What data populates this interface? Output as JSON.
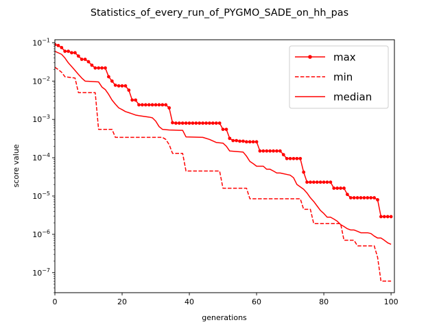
{
  "chart_data": {
    "type": "line",
    "title": "Statistics_of_every_run_of_PYGMO_SADE_on_hh_pas",
    "xlabel": "generations",
    "ylabel": "score value",
    "xlim": [
      0,
      101
    ],
    "ylim": [
      3e-08,
      0.12
    ],
    "yscale": "log",
    "x_ticks": [
      0,
      20,
      40,
      60,
      80,
      100
    ],
    "y_ticks": [
      {
        "value": 1e-07,
        "base": "10",
        "exp": "−7"
      },
      {
        "value": 1e-06,
        "base": "10",
        "exp": "−6"
      },
      {
        "value": 1e-05,
        "base": "10",
        "exp": "−5"
      },
      {
        "value": 0.0001,
        "base": "10",
        "exp": "−4"
      },
      {
        "value": 0.001,
        "base": "10",
        "exp": "−3"
      },
      {
        "value": 0.01,
        "base": "10",
        "exp": "−2"
      },
      {
        "value": 0.1,
        "base": "10",
        "exp": "−1"
      }
    ],
    "grid": false,
    "legend_position": "top-right",
    "color": "#ff0000",
    "series": [
      {
        "name": "max",
        "style": "solid-marker",
        "points": [
          [
            0,
            0.09
          ],
          [
            1,
            0.085
          ],
          [
            2,
            0.075
          ],
          [
            3,
            0.06
          ],
          [
            4,
            0.06
          ],
          [
            5,
            0.055
          ],
          [
            6,
            0.055
          ],
          [
            7,
            0.045
          ],
          [
            8,
            0.037
          ],
          [
            9,
            0.037
          ],
          [
            10,
            0.032
          ],
          [
            11,
            0.026
          ],
          [
            12,
            0.022
          ],
          [
            13,
            0.022
          ],
          [
            14,
            0.022
          ],
          [
            15,
            0.022
          ],
          [
            16,
            0.013
          ],
          [
            17,
            0.01
          ],
          [
            18,
            0.0078
          ],
          [
            19,
            0.0075
          ],
          [
            20,
            0.0075
          ],
          [
            21,
            0.0075
          ],
          [
            22,
            0.0058
          ],
          [
            23,
            0.0032
          ],
          [
            24,
            0.0032
          ],
          [
            25,
            0.0024
          ],
          [
            26,
            0.0024
          ],
          [
            27,
            0.0024
          ],
          [
            28,
            0.0024
          ],
          [
            29,
            0.0024
          ],
          [
            30,
            0.0024
          ],
          [
            31,
            0.0024
          ],
          [
            32,
            0.0024
          ],
          [
            33,
            0.0024
          ],
          [
            34,
            0.002
          ],
          [
            35,
            0.00082
          ],
          [
            36,
            0.0008
          ],
          [
            37,
            0.0008
          ],
          [
            38,
            0.0008
          ],
          [
            39,
            0.0008
          ],
          [
            40,
            0.0008
          ],
          [
            41,
            0.0008
          ],
          [
            42,
            0.0008
          ],
          [
            43,
            0.0008
          ],
          [
            44,
            0.0008
          ],
          [
            45,
            0.0008
          ],
          [
            46,
            0.0008
          ],
          [
            47,
            0.0008
          ],
          [
            48,
            0.0008
          ],
          [
            49,
            0.0008
          ],
          [
            50,
            0.00055
          ],
          [
            51,
            0.00055
          ],
          [
            52,
            0.00032
          ],
          [
            53,
            0.00028
          ],
          [
            54,
            0.00028
          ],
          [
            55,
            0.00027
          ],
          [
            56,
            0.00027
          ],
          [
            57,
            0.00026
          ],
          [
            58,
            0.00026
          ],
          [
            59,
            0.00026
          ],
          [
            60,
            0.00026
          ],
          [
            61,
            0.00015
          ],
          [
            62,
            0.00015
          ],
          [
            63,
            0.00015
          ],
          [
            64,
            0.00015
          ],
          [
            65,
            0.00015
          ],
          [
            66,
            0.00015
          ],
          [
            67,
            0.00015
          ],
          [
            68,
            0.00012
          ],
          [
            69,
            9.5e-05
          ],
          [
            70,
            9.5e-05
          ],
          [
            71,
            9.5e-05
          ],
          [
            72,
            9.5e-05
          ],
          [
            73,
            9.5e-05
          ],
          [
            74,
            4.2e-05
          ],
          [
            75,
            2.3e-05
          ],
          [
            76,
            2.3e-05
          ],
          [
            77,
            2.3e-05
          ],
          [
            78,
            2.3e-05
          ],
          [
            79,
            2.3e-05
          ],
          [
            80,
            2.3e-05
          ],
          [
            81,
            2.3e-05
          ],
          [
            82,
            2.3e-05
          ],
          [
            83,
            1.6e-05
          ],
          [
            84,
            1.6e-05
          ],
          [
            85,
            1.6e-05
          ],
          [
            86,
            1.6e-05
          ],
          [
            87,
            1.1e-05
          ],
          [
            88,
            9e-06
          ],
          [
            89,
            9e-06
          ],
          [
            90,
            9e-06
          ],
          [
            91,
            9e-06
          ],
          [
            92,
            9e-06
          ],
          [
            93,
            9e-06
          ],
          [
            94,
            9e-06
          ],
          [
            95,
            9e-06
          ],
          [
            96,
            8e-06
          ],
          [
            97,
            2.9e-06
          ],
          [
            98,
            2.9e-06
          ],
          [
            99,
            2.9e-06
          ],
          [
            100,
            2.9e-06
          ]
        ]
      },
      {
        "name": "min",
        "style": "dashed",
        "points": [
          [
            0,
            0.023
          ],
          [
            1,
            0.02
          ],
          [
            2,
            0.017
          ],
          [
            3,
            0.013
          ],
          [
            6,
            0.012
          ],
          [
            7,
            0.005
          ],
          [
            12,
            0.005
          ],
          [
            13,
            0.00055
          ],
          [
            17,
            0.00055
          ],
          [
            18,
            0.00034
          ],
          [
            32,
            0.00034
          ],
          [
            33,
            0.0003
          ],
          [
            34,
            0.00022
          ],
          [
            35,
            0.00013
          ],
          [
            38,
            0.00013
          ],
          [
            39,
            4.5e-05
          ],
          [
            49,
            4.5e-05
          ],
          [
            50,
            1.6e-05
          ],
          [
            57,
            1.6e-05
          ],
          [
            58,
            8.5e-06
          ],
          [
            73,
            8.5e-06
          ],
          [
            74,
            4.5e-06
          ],
          [
            76,
            4.5e-06
          ],
          [
            77,
            1.9e-06
          ],
          [
            85,
            1.9e-06
          ],
          [
            86,
            7e-07
          ],
          [
            89,
            7e-07
          ],
          [
            90,
            5e-07
          ],
          [
            95,
            5e-07
          ],
          [
            96,
            2.5e-07
          ],
          [
            97,
            6e-08
          ],
          [
            100,
            6e-08
          ]
        ]
      },
      {
        "name": "median",
        "style": "solid",
        "points": [
          [
            0,
            0.06
          ],
          [
            2,
            0.05
          ],
          [
            3,
            0.04
          ],
          [
            4,
            0.03
          ],
          [
            5,
            0.024
          ],
          [
            6,
            0.019
          ],
          [
            7,
            0.015
          ],
          [
            8,
            0.012
          ],
          [
            9,
            0.01
          ],
          [
            13,
            0.0095
          ],
          [
            14,
            0.007
          ],
          [
            15,
            0.006
          ],
          [
            16,
            0.0045
          ],
          [
            17,
            0.0032
          ],
          [
            18,
            0.0025
          ],
          [
            19,
            0.002
          ],
          [
            20,
            0.0018
          ],
          [
            21,
            0.0016
          ],
          [
            22,
            0.0015
          ],
          [
            23,
            0.0014
          ],
          [
            24,
            0.0013
          ],
          [
            25,
            0.00125
          ],
          [
            28,
            0.00115
          ],
          [
            29,
            0.0011
          ],
          [
            30,
            0.0009
          ],
          [
            31,
            0.00065
          ],
          [
            32,
            0.00055
          ],
          [
            34,
            0.00053
          ],
          [
            37,
            0.00052
          ],
          [
            38,
            0.00052
          ],
          [
            39,
            0.00035
          ],
          [
            44,
            0.00034
          ],
          [
            46,
            0.0003
          ],
          [
            48,
            0.00025
          ],
          [
            50,
            0.00024
          ],
          [
            51,
            0.0002
          ],
          [
            52,
            0.00015
          ],
          [
            56,
            0.00014
          ],
          [
            57,
            0.00011
          ],
          [
            58,
            8e-05
          ],
          [
            59,
            7e-05
          ],
          [
            60,
            6e-05
          ],
          [
            61,
            6e-05
          ],
          [
            62,
            6e-05
          ],
          [
            63,
            5e-05
          ],
          [
            64,
            5e-05
          ],
          [
            65,
            4.5e-05
          ],
          [
            66,
            4e-05
          ],
          [
            67,
            4e-05
          ],
          [
            70,
            3.5e-05
          ],
          [
            71,
            3e-05
          ],
          [
            72,
            2e-05
          ],
          [
            74,
            1.5e-05
          ],
          [
            75,
            1.2e-05
          ],
          [
            76,
            9e-06
          ],
          [
            77,
            7.2e-06
          ],
          [
            78,
            5.5e-06
          ],
          [
            79,
            4.2e-06
          ],
          [
            80,
            3.5e-06
          ],
          [
            81,
            2.8e-06
          ],
          [
            82,
            2.8e-06
          ],
          [
            83,
            2.5e-06
          ],
          [
            84,
            2.2e-06
          ],
          [
            85,
            1.8e-06
          ],
          [
            86,
            1.6e-06
          ],
          [
            87,
            1.4e-06
          ],
          [
            88,
            1.3e-06
          ],
          [
            89,
            1.3e-06
          ],
          [
            90,
            1.2e-06
          ],
          [
            91,
            1.1e-06
          ],
          [
            93,
            1.1e-06
          ],
          [
            94,
            1.05e-06
          ],
          [
            95,
            9e-07
          ],
          [
            96,
            8e-07
          ],
          [
            97,
            8e-07
          ],
          [
            98,
            7e-07
          ],
          [
            99,
            6e-07
          ],
          [
            100,
            5.5e-07
          ]
        ]
      }
    ]
  }
}
